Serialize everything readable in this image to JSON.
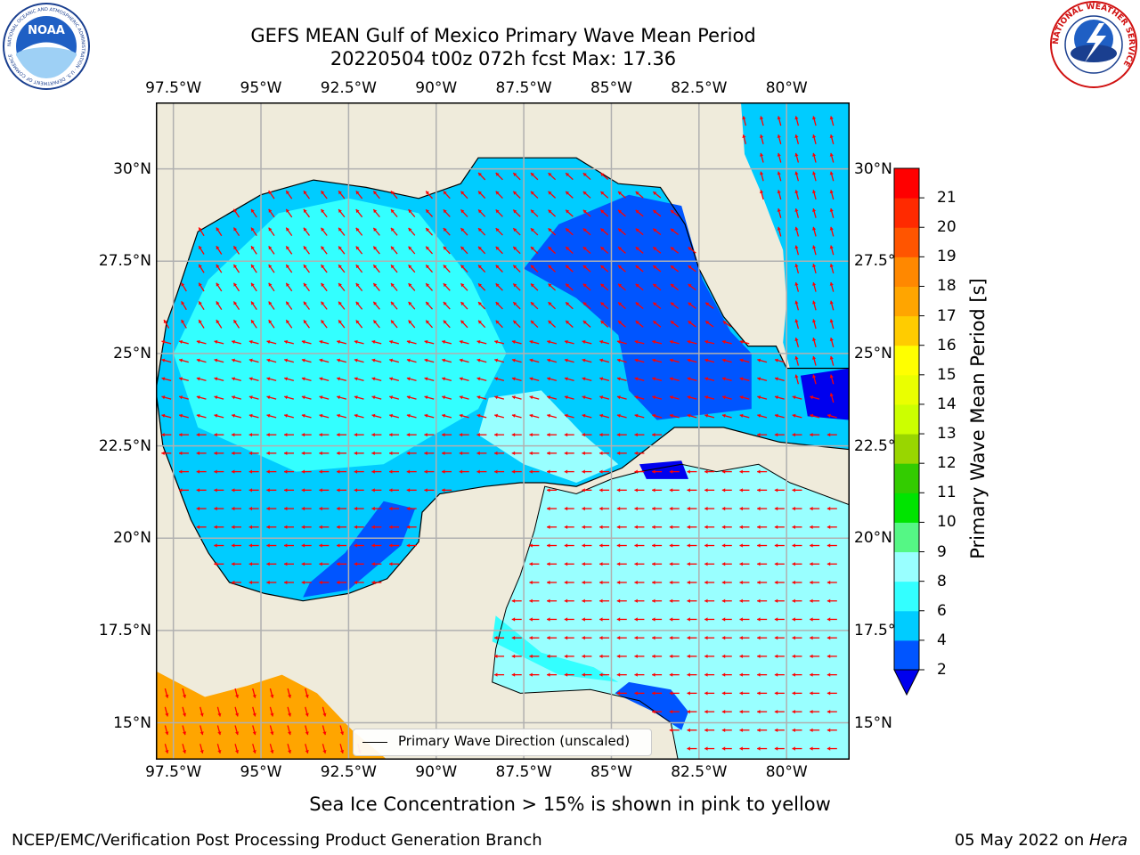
{
  "header": {
    "title_line1": "GEFS MEAN Gulf of Mexico Primary Wave Mean Period",
    "title_line2": "20220504 t00z 072h fcst   Max: 17.36"
  },
  "map": {
    "lon_ticks": [
      "97.5°W",
      "95°W",
      "92.5°W",
      "90°W",
      "87.5°W",
      "85°W",
      "82.5°W",
      "80°W"
    ],
    "lat_ticks": [
      "30°N",
      "27.5°N",
      "25°N",
      "22.5°N",
      "20°N",
      "17.5°N",
      "15°N"
    ],
    "lon_values": [
      -97.5,
      -95,
      -92.5,
      -90,
      -87.5,
      -85,
      -82.5,
      -80
    ],
    "lat_values": [
      30,
      27.5,
      25,
      22.5,
      20,
      17.5,
      15
    ],
    "lon_range": [
      -98,
      -78.2
    ],
    "lat_range": [
      14.0,
      31.8
    ],
    "land_color": "#efebdb",
    "grid": true,
    "arrow_color": "#ff0000",
    "legend": {
      "label": "Primary Wave Direction (unscaled)",
      "placement": "lower-center"
    }
  },
  "colorbar": {
    "title": "Primary Wave Mean Period [s]",
    "levels": [
      "2",
      "4",
      "6",
      "8",
      "9",
      "10",
      "11",
      "12",
      "13",
      "14",
      "15",
      "16",
      "17",
      "18",
      "19",
      "20",
      "21"
    ],
    "colors": [
      "#0055ff",
      "#00ccff",
      "#33ffff",
      "#99ffff",
      "#55f785",
      "#00e400",
      "#33cc00",
      "#99d600",
      "#ccff00",
      "#eaff00",
      "#ffff00",
      "#ffcc00",
      "#ffa500",
      "#ff8800",
      "#ff5500",
      "#ff2a00",
      "#ff0000"
    ],
    "under_color": "#0000ee",
    "extend": "min"
  },
  "footer": {
    "note": "Sea Ice Concentration > 15% is shown in pink to yellow",
    "left": "NCEP/EMC/Verification Post Processing Product Generation Branch",
    "date": "05 May 2022 on ",
    "host": "Hera"
  },
  "logos": {
    "left": {
      "icon": "noaa-logo",
      "text": "NOAA",
      "ring_text": "NATIONAL OCEANIC AND ATMOSPHERIC ADMINISTRATION · U.S. DEPARTMENT OF COMMERCE"
    },
    "right": {
      "icon": "nws-logo",
      "ring_text": "NATIONAL WEATHER SERVICE"
    }
  }
}
